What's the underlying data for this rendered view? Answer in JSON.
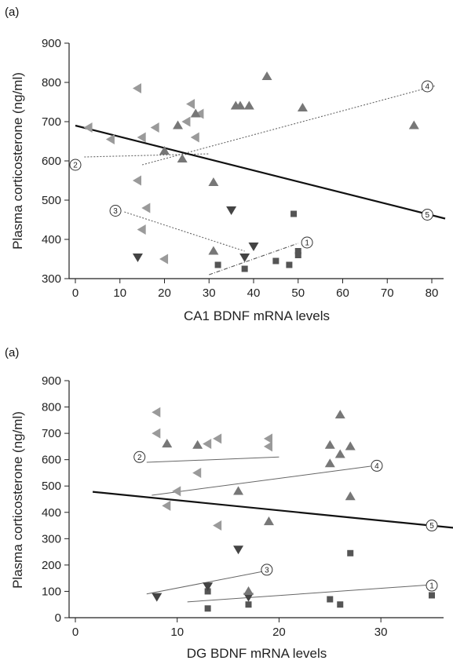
{
  "chart_data": [
    {
      "type": "scatter",
      "panel_label": "(a)",
      "xlabel": "CA1 BDNF mRNA levels",
      "ylabel": "Plasma corticosterone (ng/ml)",
      "xlim": [
        0,
        80
      ],
      "ylim": [
        300,
        900
      ],
      "xticks": [
        "0",
        "10",
        "20",
        "30",
        "40",
        "50",
        "60",
        "70",
        "80"
      ],
      "yticks": [
        "300",
        "400",
        "500",
        "600",
        "700",
        "800",
        "900"
      ],
      "series": [
        {
          "marker": "square",
          "color": "#555555",
          "points": [
            [
              32,
              335
            ],
            [
              38,
              325
            ],
            [
              45,
              345
            ],
            [
              48,
              335
            ],
            [
              50,
              370
            ],
            [
              50,
              360
            ],
            [
              49,
              465
            ]
          ]
        },
        {
          "marker": "triangle-left",
          "color": "#9a9a9a",
          "points": [
            [
              3,
              685
            ],
            [
              8,
              655
            ],
            [
              14,
              785
            ],
            [
              15,
              660
            ],
            [
              14,
              550
            ],
            [
              16,
              480
            ],
            [
              15,
              425
            ],
            [
              18,
              685
            ],
            [
              20,
              350
            ],
            [
              25,
              700
            ],
            [
              26,
              745
            ],
            [
              27,
              660
            ],
            [
              28,
              720
            ]
          ]
        },
        {
          "marker": "triangle-down",
          "color": "#444444",
          "points": [
            [
              14,
              355
            ],
            [
              35,
              475
            ],
            [
              38,
              355
            ],
            [
              40,
              383
            ]
          ]
        },
        {
          "marker": "triangle-up",
          "color": "#777777",
          "points": [
            [
              20,
              625
            ],
            [
              23,
              690
            ],
            [
              24,
              605
            ],
            [
              27,
              720
            ],
            [
              31,
              545
            ],
            [
              31,
              370
            ],
            [
              36,
              740
            ],
            [
              37,
              740
            ],
            [
              39,
              740
            ],
            [
              43,
              815
            ],
            [
              51,
              735
            ],
            [
              76,
              690
            ]
          ]
        }
      ],
      "lines": [
        {
          "label": "1",
          "style": "dash-dot",
          "from": [
            30,
            310
          ],
          "to": [
            50,
            390
          ]
        },
        {
          "label": "2",
          "style": "dotted",
          "from": [
            2,
            610
          ],
          "to": [
            30,
            618
          ]
        },
        {
          "label": "3",
          "style": "dotted",
          "from": [
            11,
            470
          ],
          "to": [
            38,
            370
          ]
        },
        {
          "label": "4",
          "style": "dotted",
          "from": [
            15,
            590
          ],
          "to": [
            81,
            792
          ]
        },
        {
          "label": "5",
          "style": "solid-bold",
          "from": [
            0,
            690
          ],
          "to": [
            83,
            453
          ]
        }
      ]
    },
    {
      "type": "scatter",
      "panel_label": "(a)",
      "xlabel": "DG BDNF mRNA levels",
      "ylabel": "Plasma corticosterone (ng/ml)",
      "xlim": [
        0,
        35
      ],
      "ylim": [
        0,
        900
      ],
      "xticks": [
        "0",
        "10",
        "20",
        "30"
      ],
      "yticks": [
        "0",
        "100",
        "200",
        "300",
        "400",
        "500",
        "600",
        "700",
        "800",
        "900"
      ],
      "series": [
        {
          "marker": "square",
          "color": "#555555",
          "points": [
            [
              13,
              100
            ],
            [
              13,
              35
            ],
            [
              17,
              50
            ],
            [
              25,
              70
            ],
            [
              26,
              50
            ],
            [
              27,
              245
            ],
            [
              35,
              85
            ]
          ]
        },
        {
          "marker": "triangle-left",
          "color": "#9a9a9a",
          "points": [
            [
              8,
              700
            ],
            [
              8,
              780
            ],
            [
              9,
              425
            ],
            [
              10,
              480
            ],
            [
              12,
              550
            ],
            [
              13,
              660
            ],
            [
              14,
              680
            ],
            [
              14,
              350
            ],
            [
              19,
              680
            ],
            [
              19,
              650
            ]
          ]
        },
        {
          "marker": "triangle-down",
          "color": "#444444",
          "points": [
            [
              8,
              80
            ],
            [
              13,
              120
            ],
            [
              16,
              260
            ],
            [
              17,
              80
            ]
          ]
        },
        {
          "marker": "triangle-up",
          "color": "#777777",
          "points": [
            [
              9,
              660
            ],
            [
              12,
              655
            ],
            [
              16,
              480
            ],
            [
              17,
              100
            ],
            [
              19,
              365
            ],
            [
              25,
              655
            ],
            [
              25,
              585
            ],
            [
              26,
              770
            ],
            [
              26,
              620
            ],
            [
              27,
              650
            ],
            [
              27,
              460
            ]
          ]
        }
      ],
      "lines": [
        {
          "label": "1",
          "style": "solid-thin",
          "from": [
            11,
            60
          ],
          "to": [
            35,
            125
          ]
        },
        {
          "label": "2",
          "style": "solid-thin",
          "from": [
            7,
            590
          ],
          "to": [
            20,
            610
          ]
        },
        {
          "label": "3",
          "style": "solid-thin",
          "from": [
            7,
            90
          ],
          "to": [
            19,
            180
          ]
        },
        {
          "label": "4",
          "style": "solid-thin",
          "from": [
            7.5,
            465
          ],
          "to": [
            29,
            575
          ]
        },
        {
          "label": "5",
          "style": "solid-bold",
          "from": [
            1.7,
            478
          ],
          "to": [
            38,
            338
          ]
        }
      ]
    }
  ]
}
